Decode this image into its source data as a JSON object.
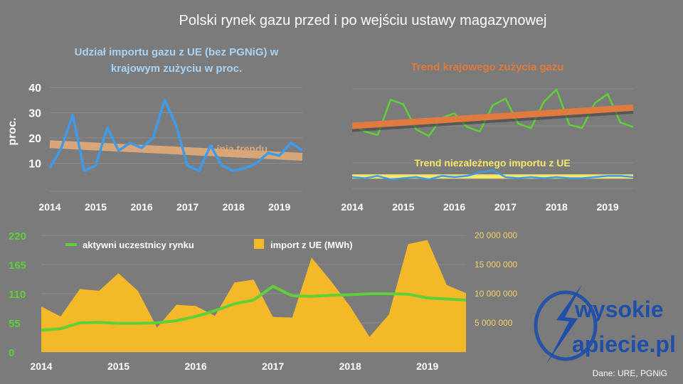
{
  "title": "Polski rynek gazu przed i po wejściu ustawy magazynowej",
  "source": "Dane: URE, PGNiG",
  "logo": {
    "line1": "wysokie",
    "line2": "apiecie.pl",
    "color": "#1f4fa8"
  },
  "colors": {
    "background": "#7b7b7b",
    "blue_series": "#3d9be9",
    "trend_orange": "#e07a3e",
    "trend_tan": "#d9a679",
    "green": "#5fcf3a",
    "area_yellow": "#f3b928",
    "yellow_line": "#f5e96a",
    "title_blue": "#a9d3f5"
  },
  "chart_data": [
    {
      "type": "line",
      "title": "Udział importu gazu z UE (bez PGNiG) w krajowym zużyciu w proc.",
      "ylabel": "proc.",
      "xlabel": "",
      "x_ticks": [
        "2014",
        "2015",
        "2016",
        "2017",
        "2018",
        "2019"
      ],
      "y_ticks": [
        "10",
        "20",
        "30",
        "40"
      ],
      "ylim": [
        0,
        45
      ],
      "xlim": [
        2014,
        2019.5
      ],
      "grid": "horizontal",
      "series": [
        {
          "values": [
            [
              2014.0,
              8
            ],
            [
              2014.25,
              16
            ],
            [
              2014.5,
              29
            ],
            [
              2014.75,
              7
            ],
            [
              2015.0,
              9
            ],
            [
              2015.25,
              24
            ],
            [
              2015.5,
              15
            ],
            [
              2015.75,
              18
            ],
            [
              2016.0,
              16
            ],
            [
              2016.25,
              20
            ],
            [
              2016.5,
              35
            ],
            [
              2016.75,
              25
            ],
            [
              2017.0,
              9
            ],
            [
              2017.25,
              7
            ],
            [
              2017.5,
              17
            ],
            [
              2017.75,
              9
            ],
            [
              2018.0,
              7
            ],
            [
              2018.25,
              8
            ],
            [
              2018.5,
              10
            ],
            [
              2018.75,
              14
            ],
            [
              2019.0,
              13
            ],
            [
              2019.25,
              18
            ],
            [
              2019.5,
              15
            ]
          ]
        }
      ],
      "trend": {
        "label": "Linia trendu",
        "from": [
          2014,
          17.5
        ],
        "to": [
          2019.5,
          12.5
        ]
      }
    },
    {
      "type": "line",
      "title": "",
      "xlabel": "",
      "ylabel": "",
      "x_ticks": [
        "2014",
        "2015",
        "2016",
        "2017",
        "2018",
        "2019"
      ],
      "xlim": [
        2014,
        2019.5
      ],
      "ylim": [
        0,
        100
      ],
      "grid": "horizontal",
      "series": [
        {
          "values": [
            [
              2014.0,
              56
            ],
            [
              2014.25,
              50
            ],
            [
              2014.5,
              47
            ],
            [
              2014.75,
              78
            ],
            [
              2015.0,
              74
            ],
            [
              2015.25,
              52
            ],
            [
              2015.5,
              46
            ],
            [
              2015.75,
              62
            ],
            [
              2016.0,
              66
            ],
            [
              2016.25,
              54
            ],
            [
              2016.5,
              50
            ],
            [
              2016.75,
              73
            ],
            [
              2017.0,
              79
            ],
            [
              2017.25,
              57
            ],
            [
              2017.5,
              53
            ],
            [
              2017.75,
              76
            ],
            [
              2018.0,
              87
            ],
            [
              2018.25,
              56
            ],
            [
              2018.5,
              53
            ],
            [
              2018.75,
              75
            ],
            [
              2019.0,
              83
            ],
            [
              2019.25,
              58
            ],
            [
              2019.5,
              54
            ]
          ]
        },
        {
          "values": [
            [
              2014.0,
              10
            ],
            [
              2014.25,
              9
            ],
            [
              2014.5,
              11
            ],
            [
              2014.75,
              8
            ],
            [
              2015.0,
              9
            ],
            [
              2015.25,
              10
            ],
            [
              2015.5,
              8
            ],
            [
              2015.75,
              11
            ],
            [
              2016.0,
              10
            ],
            [
              2016.25,
              11
            ],
            [
              2016.5,
              14
            ],
            [
              2016.75,
              16
            ],
            [
              2017.0,
              10
            ],
            [
              2017.25,
              9
            ],
            [
              2017.5,
              10
            ],
            [
              2017.75,
              9
            ],
            [
              2018.0,
              10
            ],
            [
              2018.25,
              9
            ],
            [
              2018.5,
              9
            ],
            [
              2018.75,
              10
            ],
            [
              2019.0,
              11
            ],
            [
              2019.25,
              11
            ],
            [
              2019.5,
              10
            ]
          ]
        }
      ],
      "trends": [
        {
          "label": "Trend krajowego zużycia gazu",
          "from": [
            2014,
            55
          ],
          "to": [
            2019.5,
            71
          ]
        },
        {
          "label": "Trend niezależnego importu z UE",
          "from": [
            2014,
            10.5
          ],
          "to": [
            2019.5,
            10.5
          ]
        }
      ]
    },
    {
      "type": "area",
      "title": "",
      "xlabel": "",
      "ylabel": "",
      "x_ticks": [
        "2014",
        "2015",
        "2016",
        "2017",
        "2018",
        "2019"
      ],
      "xlim": [
        2014,
        2019.5
      ],
      "y_left": {
        "ticks": [
          "0",
          "55",
          "110",
          "165",
          "220"
        ],
        "ylim": [
          0,
          220
        ]
      },
      "y_right": {
        "ticks": [
          "5 000 000",
          "10 000 000",
          "15 000 000",
          "20 000 000"
        ],
        "ylim": [
          0,
          20000000
        ]
      },
      "legend": {
        "placement": "top",
        "items": [
          "aktywni uczestnicy rynku",
          "import z UE (MWh)"
        ]
      },
      "series": [
        {
          "name": "import z UE (MWh)",
          "axis": "right",
          "values": [
            [
              2014.0,
              7800000
            ],
            [
              2014.25,
              6100000
            ],
            [
              2014.5,
              10800000
            ],
            [
              2014.75,
              10500000
            ],
            [
              2015.0,
              13500000
            ],
            [
              2015.25,
              10500000
            ],
            [
              2015.5,
              4200000
            ],
            [
              2015.75,
              8100000
            ],
            [
              2016.0,
              7900000
            ],
            [
              2016.25,
              6200000
            ],
            [
              2016.5,
              11900000
            ],
            [
              2016.75,
              12400000
            ],
            [
              2017.0,
              6000000
            ],
            [
              2017.25,
              5900000
            ],
            [
              2017.5,
              16200000
            ],
            [
              2017.75,
              12200000
            ],
            [
              2018.0,
              7800000
            ],
            [
              2018.25,
              2600000
            ],
            [
              2018.5,
              6400000
            ],
            [
              2018.75,
              18500000
            ],
            [
              2019.0,
              19200000
            ],
            [
              2019.25,
              11500000
            ],
            [
              2019.5,
              10100000
            ]
          ]
        },
        {
          "name": "aktywni uczestnicy rynku",
          "axis": "left",
          "values": [
            [
              2014.0,
              41
            ],
            [
              2014.25,
              44
            ],
            [
              2014.5,
              55
            ],
            [
              2014.75,
              56
            ],
            [
              2015.0,
              54
            ],
            [
              2015.25,
              54
            ],
            [
              2015.5,
              55
            ],
            [
              2015.75,
              59
            ],
            [
              2016.0,
              67
            ],
            [
              2016.25,
              78
            ],
            [
              2016.5,
              91
            ],
            [
              2016.75,
              98
            ],
            [
              2017.0,
              124
            ],
            [
              2017.25,
              106
            ],
            [
              2017.5,
              105
            ],
            [
              2017.75,
              107
            ],
            [
              2018.0,
              108
            ],
            [
              2018.25,
              110
            ],
            [
              2018.5,
              110
            ],
            [
              2018.75,
              109
            ],
            [
              2019.0,
              102
            ],
            [
              2019.25,
              100
            ],
            [
              2019.5,
              98
            ]
          ]
        }
      ]
    }
  ]
}
